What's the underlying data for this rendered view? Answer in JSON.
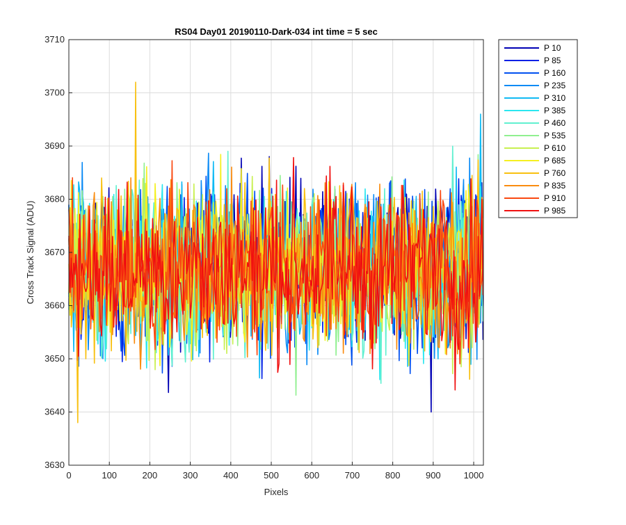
{
  "chart_data": {
    "type": "line",
    "title": "RS04 Day01 20190110-Dark-034 int time = 5 sec",
    "xlabel": "Pixels",
    "ylabel": "Cross Track Signal (ADU)",
    "xlim": [
      0,
      1024
    ],
    "ylim": [
      3630,
      3710
    ],
    "xticks": [
      0,
      100,
      200,
      300,
      400,
      500,
      600,
      700,
      800,
      900,
      1000
    ],
    "yticks": [
      3630,
      3640,
      3650,
      3660,
      3670,
      3680,
      3690,
      3700,
      3710
    ],
    "grid": true,
    "legend_position": "outside-top-right",
    "series": [
      {
        "name": "P 10",
        "color": "#0000b4"
      },
      {
        "name": "P 85",
        "color": "#0020e6"
      },
      {
        "name": "P 160",
        "color": "#0050f0"
      },
      {
        "name": "P 235",
        "color": "#0a8af5"
      },
      {
        "name": "P 310",
        "color": "#10baf4"
      },
      {
        "name": "P 385",
        "color": "#2ae6f0"
      },
      {
        "name": "P 460",
        "color": "#60f0d0"
      },
      {
        "name": "P 535",
        "color": "#90f090"
      },
      {
        "name": "P 610",
        "color": "#c8f050"
      },
      {
        "name": "P 685",
        "color": "#f5f020"
      },
      {
        "name": "P 760",
        "color": "#f8c010"
      },
      {
        "name": "P 835",
        "color": "#fa8c10"
      },
      {
        "name": "P 910",
        "color": "#fa4810"
      },
      {
        "name": "P 985",
        "color": "#f01010"
      }
    ],
    "description": "Each series is dark-frame noise across 1024 pixels centered near 3667 ADU, ranging roughly 3642-3692 ADU; individual outliers reach 3702 (P 760 near pixel 165) and 3638 (P 760 near pixel 22).",
    "noise": {
      "mean": 3667,
      "min": 3642,
      "max": 3692
    },
    "notable_points": [
      {
        "series": "P 760",
        "x": 165,
        "y": 3702
      },
      {
        "series": "P 760",
        "x": 22,
        "y": 3638
      },
      {
        "series": "P 10",
        "x": 895,
        "y": 3640
      },
      {
        "series": "P 310",
        "x": 1017,
        "y": 3696
      }
    ]
  }
}
